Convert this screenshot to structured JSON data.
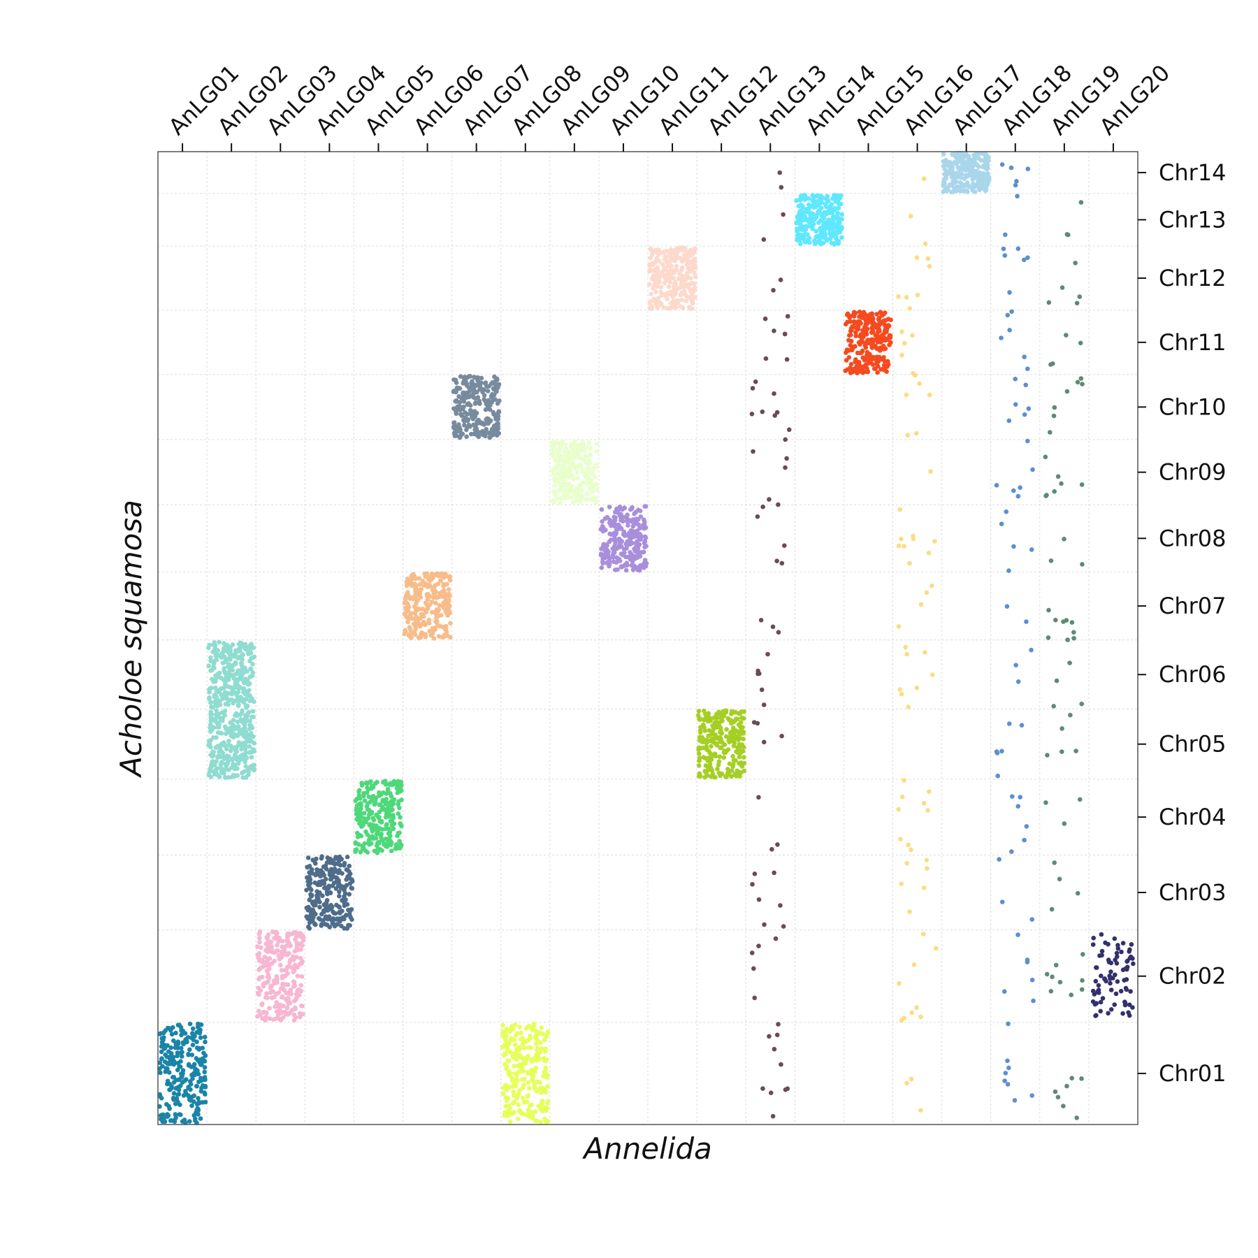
{
  "chart_data": {
    "type": "scatter",
    "title": "",
    "xlabel": "Annelida",
    "ylabel": "Acholoe squamosa",
    "x_axis_position": "top",
    "y_axis_position": "right",
    "grid": "dashed, light",
    "x_categories": [
      "AnLG01",
      "AnLG02",
      "AnLG03",
      "AnLG04",
      "AnLG05",
      "AnLG06",
      "AnLG07",
      "AnLG08",
      "AnLG09",
      "AnLG10",
      "AnLG11",
      "AnLG12",
      "AnLG13",
      "AnLG14",
      "AnLG15",
      "AnLG16",
      "AnLG17",
      "AnLG18",
      "AnLG19",
      "AnLG20"
    ],
    "y_categories": [
      "Chr01",
      "Chr02",
      "Chr03",
      "Chr04",
      "Chr05",
      "Chr06",
      "Chr07",
      "Chr08",
      "Chr09",
      "Chr10",
      "Chr11",
      "Chr12",
      "Chr13",
      "Chr14"
    ],
    "y_category_span": [
      {
        "name": "Chr01",
        "from": 0.0,
        "to": 0.105
      },
      {
        "name": "Chr02",
        "from": 0.105,
        "to": 0.2
      },
      {
        "name": "Chr03",
        "from": 0.2,
        "to": 0.277
      },
      {
        "name": "Chr04",
        "from": 0.277,
        "to": 0.355
      },
      {
        "name": "Chr05",
        "from": 0.355,
        "to": 0.427
      },
      {
        "name": "Chr06",
        "from": 0.427,
        "to": 0.498
      },
      {
        "name": "Chr07",
        "from": 0.498,
        "to": 0.568
      },
      {
        "name": "Chr08",
        "from": 0.568,
        "to": 0.637
      },
      {
        "name": "Chr09",
        "from": 0.637,
        "to": 0.704
      },
      {
        "name": "Chr10",
        "from": 0.704,
        "to": 0.771
      },
      {
        "name": "Chr11",
        "from": 0.771,
        "to": 0.837
      },
      {
        "name": "Chr12",
        "from": 0.837,
        "to": 0.903
      },
      {
        "name": "Chr13",
        "from": 0.903,
        "to": 0.957
      },
      {
        "name": "Chr14",
        "from": 0.957,
        "to": 1.0
      }
    ],
    "series": [
      {
        "x": "AnLG01",
        "y": "Chr01",
        "color": "#1a84a8",
        "density": "dense"
      },
      {
        "x": "AnLG02",
        "y": "Chr06",
        "color": "#8fdcd0",
        "density": "dense"
      },
      {
        "x": "AnLG02",
        "y": "Chr05",
        "color": "#8fdcd0",
        "density": "dense"
      },
      {
        "x": "AnLG03",
        "y": "Chr02",
        "color": "#f7b6d2",
        "density": "dense"
      },
      {
        "x": "AnLG04",
        "y": "Chr03",
        "color": "#4f6d8a",
        "density": "dense"
      },
      {
        "x": "AnLG05",
        "y": "Chr04",
        "color": "#4ed87a",
        "density": "dense"
      },
      {
        "x": "AnLG06",
        "y": "Chr07",
        "color": "#f8bc8a",
        "density": "dense"
      },
      {
        "x": "AnLG07",
        "y": "Chr10",
        "color": "#788b9e",
        "density": "dense"
      },
      {
        "x": "AnLG08",
        "y": "Chr01",
        "color": "#e6ff5a",
        "density": "dense"
      },
      {
        "x": "AnLG09",
        "y": "Chr09",
        "color": "#e8ffcc",
        "density": "dense"
      },
      {
        "x": "AnLG10",
        "y": "Chr08",
        "color": "#a98fdb",
        "density": "dense"
      },
      {
        "x": "AnLG11",
        "y": "Chr12",
        "color": "#fdd9cc",
        "density": "dense"
      },
      {
        "x": "AnLG12",
        "y": "Chr05",
        "color": "#a5cf25",
        "density": "dense"
      },
      {
        "x": "AnLG13",
        "y": "all",
        "color": "#6b4a5a",
        "density": "sparse"
      },
      {
        "x": "AnLG14",
        "y": "Chr13",
        "color": "#5fe8ff",
        "density": "dense"
      },
      {
        "x": "AnLG15",
        "y": "Chr11",
        "color": "#f54a1f",
        "density": "dense"
      },
      {
        "x": "AnLG16",
        "y": "all",
        "color": "#fbdc80",
        "density": "sparse"
      },
      {
        "x": "AnLG17",
        "y": "Chr14",
        "color": "#a9d6ea",
        "density": "dense"
      },
      {
        "x": "AnLG18",
        "y": "all",
        "color": "#5b8fd0",
        "density": "sparse"
      },
      {
        "x": "AnLG19",
        "y": "all",
        "color": "#5e8a74",
        "density": "sparse"
      },
      {
        "x": "AnLG20",
        "y": "Chr02",
        "color": "#33306e",
        "density": "medium"
      }
    ]
  }
}
